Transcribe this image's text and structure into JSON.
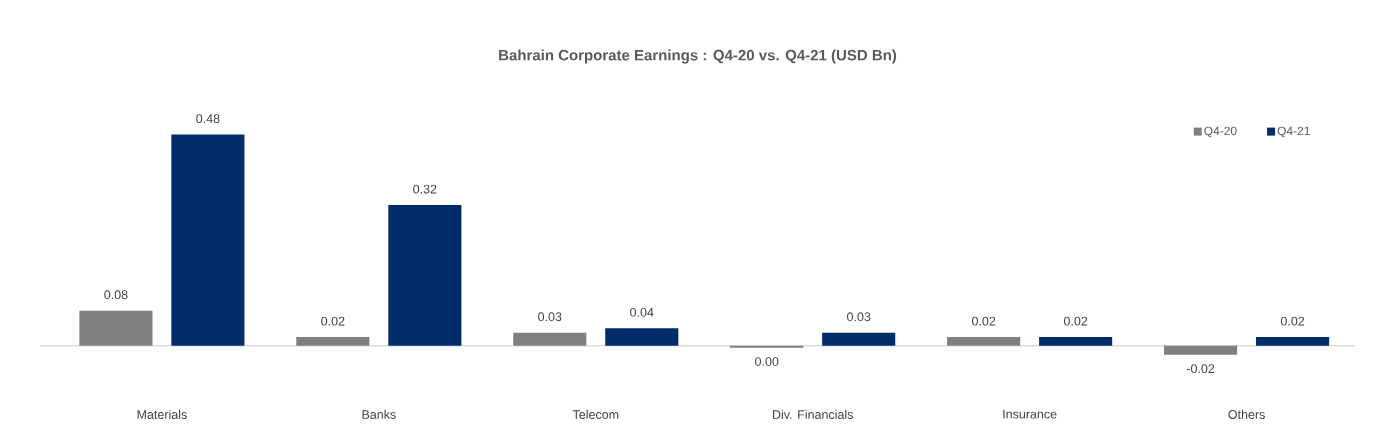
{
  "chart_data": {
    "type": "bar",
    "title": "Bahrain Corporate Earnings : Q4-20 vs. Q4-21 (USD Bn)",
    "categories": [
      "Materials",
      "Banks",
      "Telecom",
      "Div. Financials",
      "Insurance",
      "Others"
    ],
    "series": [
      {
        "name": "Q4-20",
        "color": "#7f7f7f",
        "values": [
          0.08,
          0.02,
          0.03,
          -0.004,
          0.02,
          -0.02
        ],
        "value_labels": [
          "0.08",
          "0.02",
          "0.03",
          "0.00",
          "0.02",
          "-0.02"
        ]
      },
      {
        "name": "Q4-21",
        "color": "#002d6a",
        "values": [
          0.48,
          0.32,
          0.04,
          0.03,
          0.02,
          0.02
        ],
        "value_labels": [
          "0.48",
          "0.32",
          "0.04",
          "0.03",
          "0.02",
          "0.02"
        ]
      }
    ],
    "legend": "top right"
  }
}
